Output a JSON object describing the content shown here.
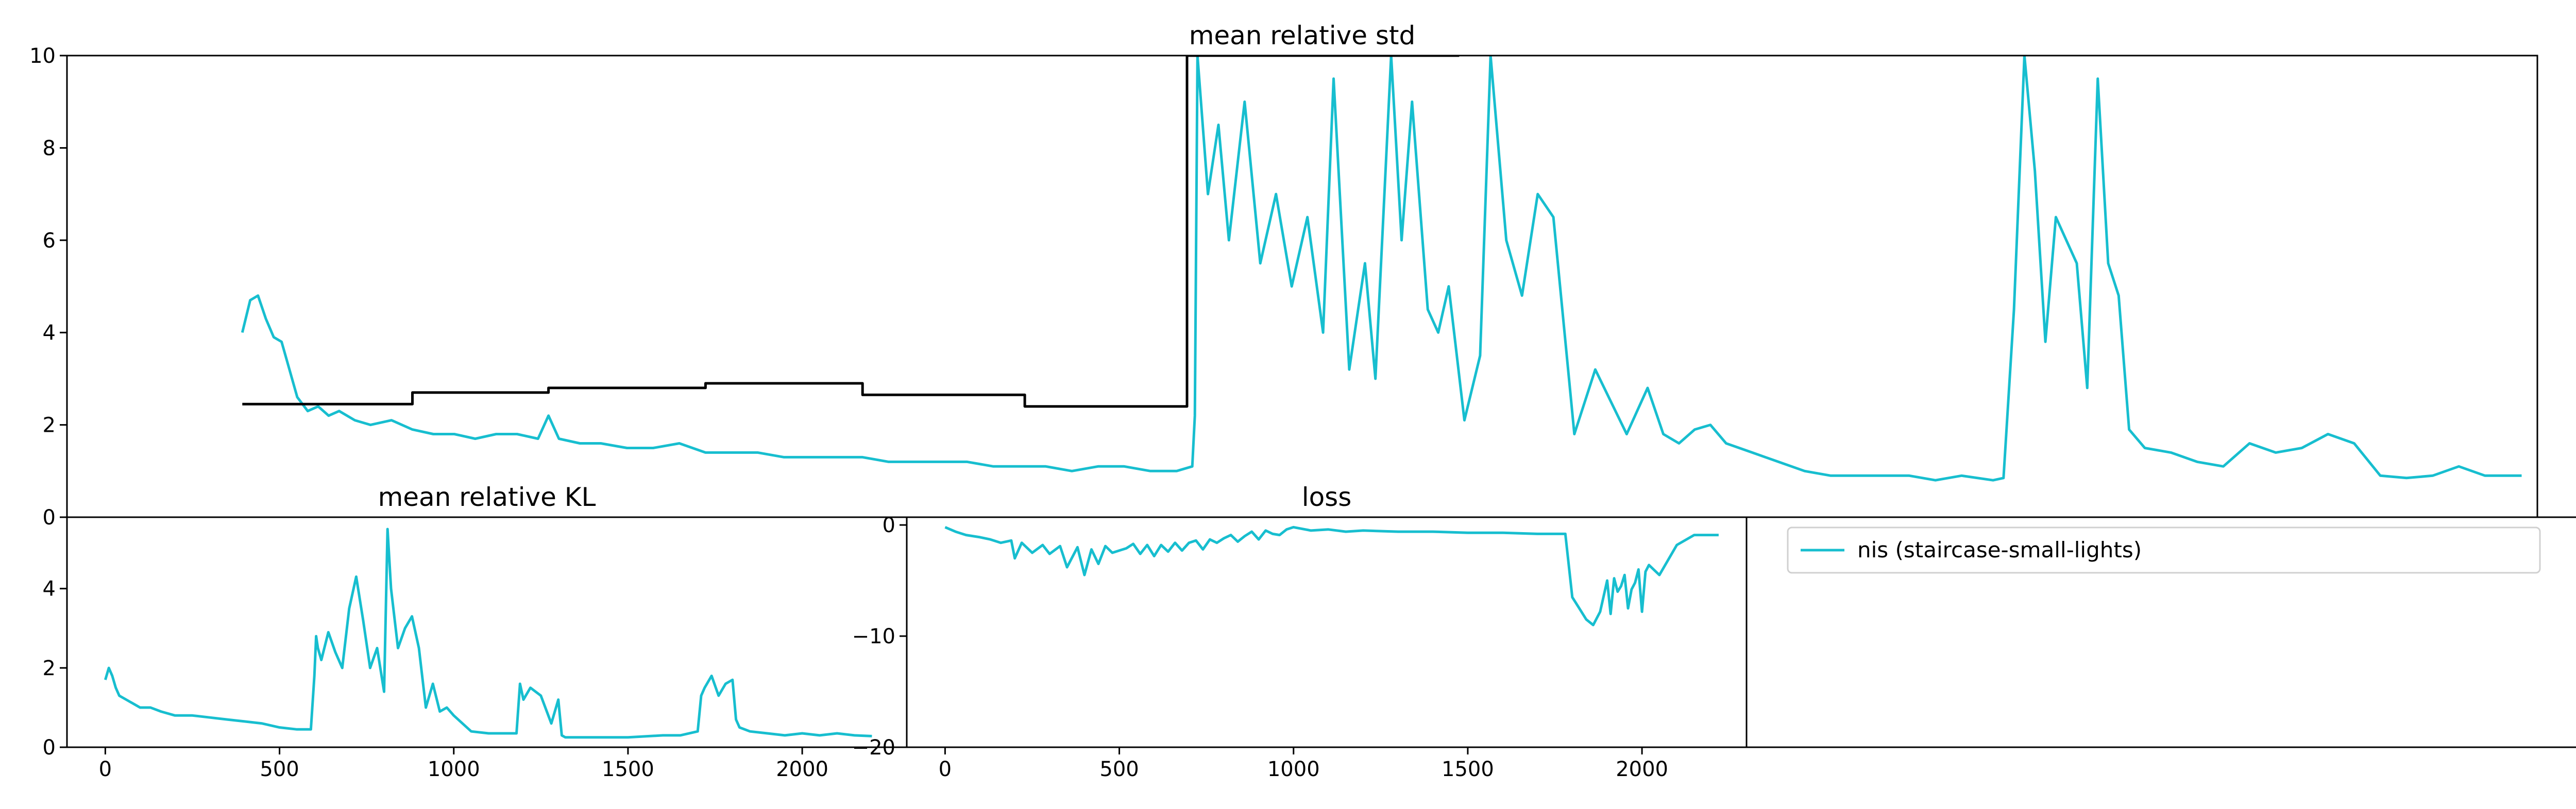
{
  "chart_data": [
    {
      "id": "std",
      "type": "line",
      "title": "mean relative std",
      "xlim": [
        -120,
        4600
      ],
      "ylim": [
        0,
        10
      ],
      "yticks": [
        0,
        2,
        4,
        6,
        8,
        10
      ],
      "xticks": [],
      "series": [
        {
          "color": "#17becf",
          "x": [
            215,
            230,
            245,
            260,
            275,
            290,
            305,
            320,
            340,
            360,
            380,
            400,
            430,
            460,
            500,
            540,
            580,
            620,
            660,
            700,
            740,
            780,
            800,
            820,
            860,
            900,
            950,
            1000,
            1050,
            1100,
            1150,
            1200,
            1250,
            1300,
            1350,
            1400,
            1450,
            1500,
            1550,
            1600,
            1650,
            1700,
            1750,
            1800,
            1850,
            1900,
            1950,
            2000,
            2030,
            2035,
            2040,
            2060,
            2080,
            2100,
            2130,
            2160,
            2190,
            2220,
            2250,
            2280,
            2300,
            2330,
            2360,
            2380,
            2410,
            2430,
            2450,
            2480,
            2500,
            2520,
            2550,
            2580,
            2600,
            2630,
            2660,
            2690,
            2720,
            2760,
            2800,
            2830,
            2860,
            2900,
            2930,
            2960,
            2990,
            3020,
            3050,
            3100,
            3150,
            3200,
            3250,
            3300,
            3350,
            3400,
            3450,
            3500,
            3560,
            3580,
            3600,
            3620,
            3640,
            3660,
            3680,
            3700,
            3720,
            3740,
            3760,
            3780,
            3800,
            3820,
            3850,
            3900,
            3950,
            4000,
            4050,
            4100,
            4150,
            4200,
            4250,
            4300,
            4350,
            4400,
            4450,
            4500,
            4570
          ],
          "y": [
            4.0,
            4.7,
            4.8,
            4.3,
            3.9,
            3.8,
            3.2,
            2.6,
            2.3,
            2.4,
            2.2,
            2.3,
            2.1,
            2.0,
            2.1,
            1.9,
            1.8,
            1.8,
            1.7,
            1.8,
            1.8,
            1.7,
            2.2,
            1.7,
            1.6,
            1.6,
            1.5,
            1.5,
            1.6,
            1.4,
            1.4,
            1.4,
            1.3,
            1.3,
            1.3,
            1.3,
            1.2,
            1.2,
            1.2,
            1.2,
            1.1,
            1.1,
            1.1,
            1.0,
            1.1,
            1.1,
            1.0,
            1.0,
            1.1,
            2.2,
            10.0,
            7.0,
            8.5,
            6.0,
            9.0,
            5.5,
            7.0,
            5.0,
            6.5,
            4.0,
            9.5,
            3.2,
            5.5,
            3.0,
            10.0,
            6.0,
            9.0,
            4.5,
            4.0,
            5.0,
            2.1,
            3.5,
            10.0,
            6.0,
            4.8,
            7.0,
            6.5,
            1.8,
            3.2,
            2.5,
            1.8,
            2.8,
            1.8,
            1.6,
            1.9,
            2.0,
            1.6,
            1.4,
            1.2,
            1.0,
            0.9,
            0.9,
            0.9,
            0.9,
            0.8,
            0.9,
            0.8,
            0.85,
            4.5,
            10.0,
            7.5,
            3.8,
            6.5,
            6.0,
            5.5,
            2.8,
            9.5,
            5.5,
            4.8,
            1.9,
            1.5,
            1.4,
            1.2,
            1.1,
            1.6,
            1.4,
            1.5,
            1.8,
            1.6,
            0.9,
            0.85,
            0.9,
            1.1,
            0.9,
            0.9
          ]
        },
        {
          "color": "#000000",
          "x": [
            215,
            540,
            540,
            800,
            800,
            1100,
            1100,
            1400,
            1400,
            1710,
            1710,
            2020,
            2020,
            2040,
            2040,
            2480,
            2480,
            2480,
            2510,
            2540
          ],
          "y": [
            2.45,
            2.45,
            2.7,
            2.7,
            2.8,
            2.8,
            2.9,
            2.9,
            2.65,
            2.65,
            2.4,
            2.4,
            10.0,
            10.0,
            10.0,
            10.0,
            10.0,
            10.0,
            10.0,
            10.0
          ]
        }
      ]
    },
    {
      "id": "kl",
      "type": "line",
      "title": "mean relative KL",
      "xlim": [
        -110,
        2300
      ],
      "ylim": [
        0,
        5.8
      ],
      "yticks": [
        0,
        2,
        4
      ],
      "xticks": [
        0,
        500,
        1000,
        1500,
        2000
      ],
      "series": [
        {
          "color": "#17becf",
          "x": [
            0,
            10,
            20,
            30,
            40,
            60,
            80,
            100,
            130,
            160,
            200,
            250,
            300,
            350,
            400,
            450,
            500,
            550,
            590,
            600,
            605,
            610,
            620,
            640,
            660,
            680,
            700,
            720,
            740,
            760,
            780,
            800,
            810,
            820,
            840,
            860,
            880,
            900,
            920,
            940,
            960,
            980,
            1000,
            1050,
            1100,
            1150,
            1180,
            1190,
            1200,
            1220,
            1250,
            1280,
            1300,
            1310,
            1320,
            1350,
            1400,
            1500,
            1600,
            1650,
            1700,
            1710,
            1720,
            1740,
            1760,
            1780,
            1800,
            1810,
            1820,
            1850,
            1900,
            1950,
            2000,
            2050,
            2100,
            2150,
            2200
          ],
          "y": [
            1.7,
            2.0,
            1.8,
            1.5,
            1.3,
            1.2,
            1.1,
            1.0,
            1.0,
            0.9,
            0.8,
            0.8,
            0.75,
            0.7,
            0.65,
            0.6,
            0.5,
            0.45,
            0.45,
            1.8,
            2.8,
            2.5,
            2.2,
            2.9,
            2.4,
            2.0,
            3.5,
            4.3,
            3.2,
            2.0,
            2.5,
            1.4,
            5.5,
            4.0,
            2.5,
            3.0,
            3.3,
            2.5,
            1.0,
            1.6,
            0.9,
            1.0,
            0.8,
            0.4,
            0.35,
            0.35,
            0.35,
            1.6,
            1.2,
            1.5,
            1.3,
            0.6,
            1.2,
            0.3,
            0.25,
            0.25,
            0.25,
            0.25,
            0.3,
            0.3,
            0.4,
            1.3,
            1.5,
            1.8,
            1.3,
            1.6,
            1.7,
            0.7,
            0.5,
            0.4,
            0.35,
            0.3,
            0.35,
            0.3,
            0.35,
            0.3,
            0.28
          ]
        }
      ]
    },
    {
      "id": "loss",
      "type": "line",
      "title": "loss",
      "xlim": [
        -110,
        2300
      ],
      "ylim": [
        -20,
        0.7
      ],
      "yticks": [
        0,
        -10,
        -20
      ],
      "xticks": [
        0,
        500,
        1000,
        1500,
        2000
      ],
      "series": [
        {
          "color": "#17becf",
          "x": [
            0,
            30,
            60,
            100,
            130,
            160,
            190,
            200,
            220,
            250,
            280,
            300,
            330,
            350,
            380,
            400,
            420,
            440,
            460,
            480,
            500,
            520,
            540,
            560,
            580,
            600,
            620,
            640,
            660,
            680,
            700,
            720,
            740,
            760,
            780,
            800,
            820,
            840,
            860,
            880,
            900,
            920,
            940,
            960,
            980,
            1000,
            1050,
            1100,
            1150,
            1200,
            1300,
            1400,
            1500,
            1600,
            1700,
            1750,
            1780,
            1800,
            1820,
            1840,
            1860,
            1880,
            1900,
            1910,
            1920,
            1930,
            1940,
            1950,
            1960,
            1970,
            1980,
            1990,
            2000,
            2010,
            2020,
            2050,
            2100,
            2150,
            2200,
            2220
          ],
          "y": [
            -0.2,
            -0.6,
            -0.9,
            -1.1,
            -1.3,
            -1.6,
            -1.4,
            -3.0,
            -1.6,
            -2.5,
            -1.8,
            -2.6,
            -1.9,
            -3.8,
            -2.0,
            -4.5,
            -2.2,
            -3.5,
            -1.9,
            -2.5,
            -2.3,
            -2.1,
            -1.7,
            -2.6,
            -1.8,
            -2.8,
            -1.8,
            -2.4,
            -1.6,
            -2.3,
            -1.6,
            -1.4,
            -2.2,
            -1.3,
            -1.6,
            -1.2,
            -0.9,
            -1.5,
            -1.0,
            -0.6,
            -1.3,
            -0.5,
            -0.8,
            -0.9,
            -0.4,
            -0.2,
            -0.5,
            -0.4,
            -0.6,
            -0.5,
            -0.6,
            -0.6,
            -0.7,
            -0.7,
            -0.8,
            -0.8,
            -0.8,
            -6.5,
            -7.5,
            -8.5,
            -9.0,
            -7.8,
            -5.0,
            -8.0,
            -4.8,
            -6.0,
            -5.5,
            -4.5,
            -7.5,
            -5.8,
            -5.2,
            -4.0,
            -7.8,
            -4.2,
            -3.6,
            -4.5,
            -1.8,
            -0.9,
            -0.9,
            -0.9
          ]
        }
      ]
    },
    {
      "id": "legend",
      "type": "line",
      "legend": [
        {
          "label": "nis (staircase-small-lights)",
          "color": "#17becf"
        }
      ],
      "legend_placement": "top-left"
    }
  ]
}
